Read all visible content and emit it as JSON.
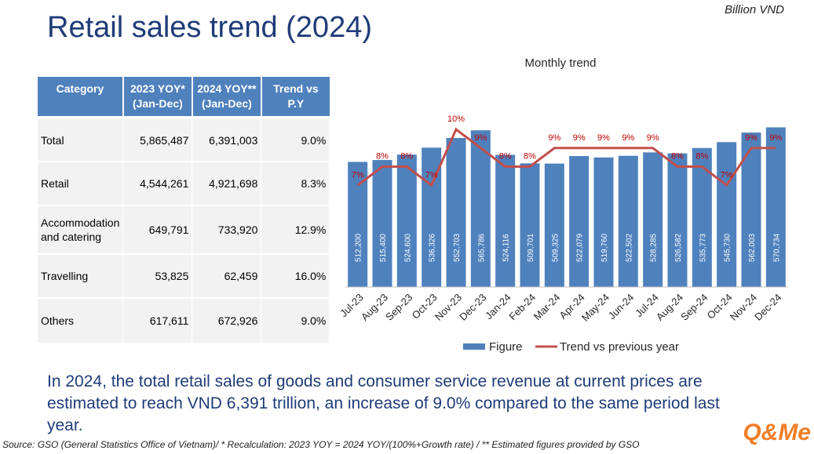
{
  "unit_note": "Billion VND",
  "title": "Retail sales trend (2024)",
  "table": {
    "headers": [
      "Category",
      "2023 YOY* (Jan-Dec)",
      "2024 YOY** (Jan-Dec)",
      "Trend vs P.Y"
    ],
    "rows": [
      [
        "Total",
        "5,865,487",
        "6,391,003",
        "9.0%"
      ],
      [
        "Retail",
        "4,544,261",
        "4,921,698",
        "8.3%"
      ],
      [
        "Accommodation and catering",
        "649,791",
        "733,920",
        "12.9%"
      ],
      [
        "Travelling",
        "53,825",
        "62,459",
        "16.0%"
      ],
      [
        "Others",
        "617,611",
        "672,926",
        "9.0%"
      ]
    ]
  },
  "chart_data": {
    "type": "bar",
    "title": "Monthly trend",
    "categories": [
      "Jul-23",
      "Aug-23",
      "Sep-23",
      "Oct-23",
      "Nov-23",
      "Dec-23",
      "Jan-24",
      "Feb-24",
      "Mar-24",
      "Apr-24",
      "May-24",
      "Jun-24",
      "Jul-24",
      "Aug-24",
      "Sep-24",
      "Oct-24",
      "Nov-24",
      "Dec-24"
    ],
    "series": [
      {
        "name": "Figure",
        "type": "bar",
        "color": "#4f81bd",
        "values": [
          512200,
          515400,
          524600,
          536326,
          552703,
          565786,
          524116,
          509701,
          509325,
          522079,
          519760,
          522502,
          528285,
          526582,
          535773,
          545730,
          562003,
          570734
        ]
      },
      {
        "name": "Trend vs previous year",
        "type": "line",
        "color": "#c0504d",
        "values": [
          7,
          8,
          8,
          7,
          10,
          9,
          8,
          8,
          9,
          9,
          9,
          9,
          9,
          8,
          8,
          7,
          9,
          9
        ]
      }
    ],
    "legend": "bottom"
  },
  "summary": "In 2024, the total retail sales of goods and consumer service revenue at current prices are estimated to reach VND 6,391 trillion, an increase of 9.0% compared to the same period last year.",
  "source": "Source: GSO (General Statistics Office of Vietnam)/ * Recalculation: 2023 YOY = 2024 YOY/(100%+Growth rate) / ** Estimated figures provided by GSO",
  "logo": "Q&Me"
}
